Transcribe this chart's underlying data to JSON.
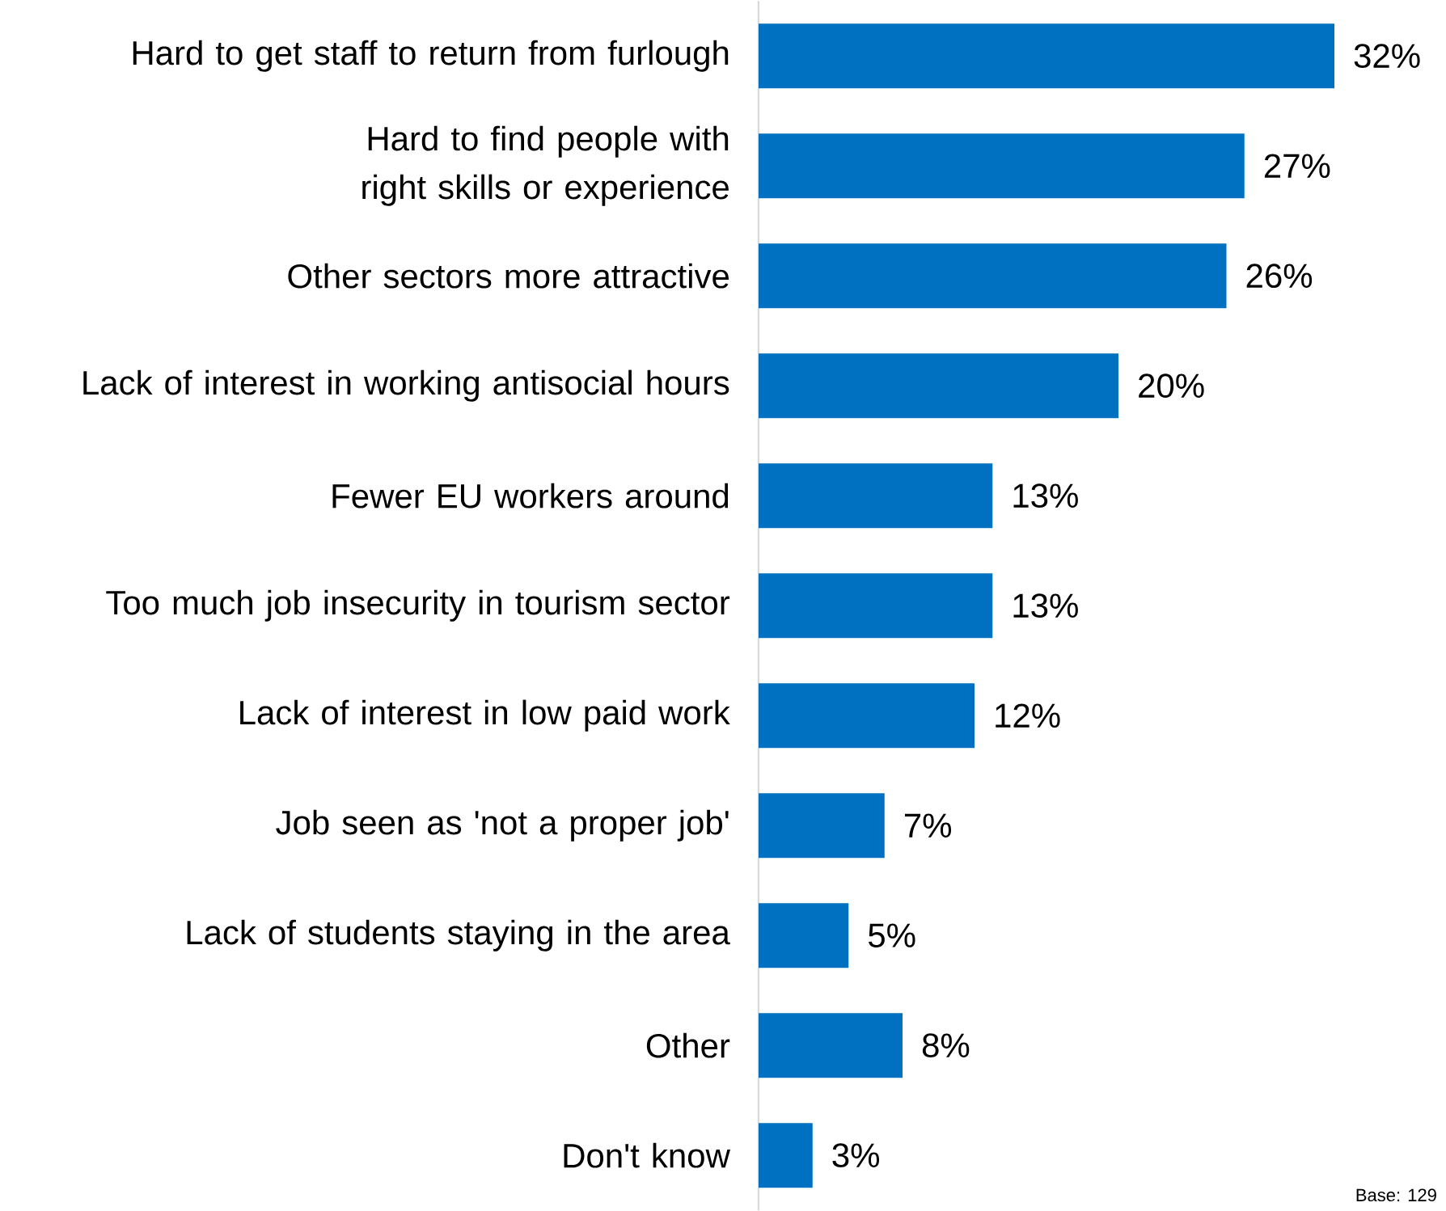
{
  "chart_data": {
    "type": "bar",
    "orientation": "horizontal",
    "categories": [
      "Hard to get staff to return from furlough",
      "Hard to find people with right skills or experience",
      "Other sectors more attractive",
      "Lack of interest in working antisocial hours",
      "Fewer EU workers around",
      "Too much job insecurity in tourism sector",
      "Lack of interest in low paid work",
      "Job seen as 'not a proper job'",
      "Lack of students staying in the area",
      "Other",
      "Don't know"
    ],
    "values": [
      32,
      27,
      26,
      20,
      13,
      13,
      12,
      7,
      5,
      8,
      3
    ],
    "value_labels": [
      "32%",
      "27%",
      "26%",
      "20%",
      "13%",
      "13%",
      "12%",
      "7%",
      "5%",
      "8%",
      "3%"
    ],
    "color": "#0070c0",
    "annotations": [
      "Base: 129"
    ]
  }
}
